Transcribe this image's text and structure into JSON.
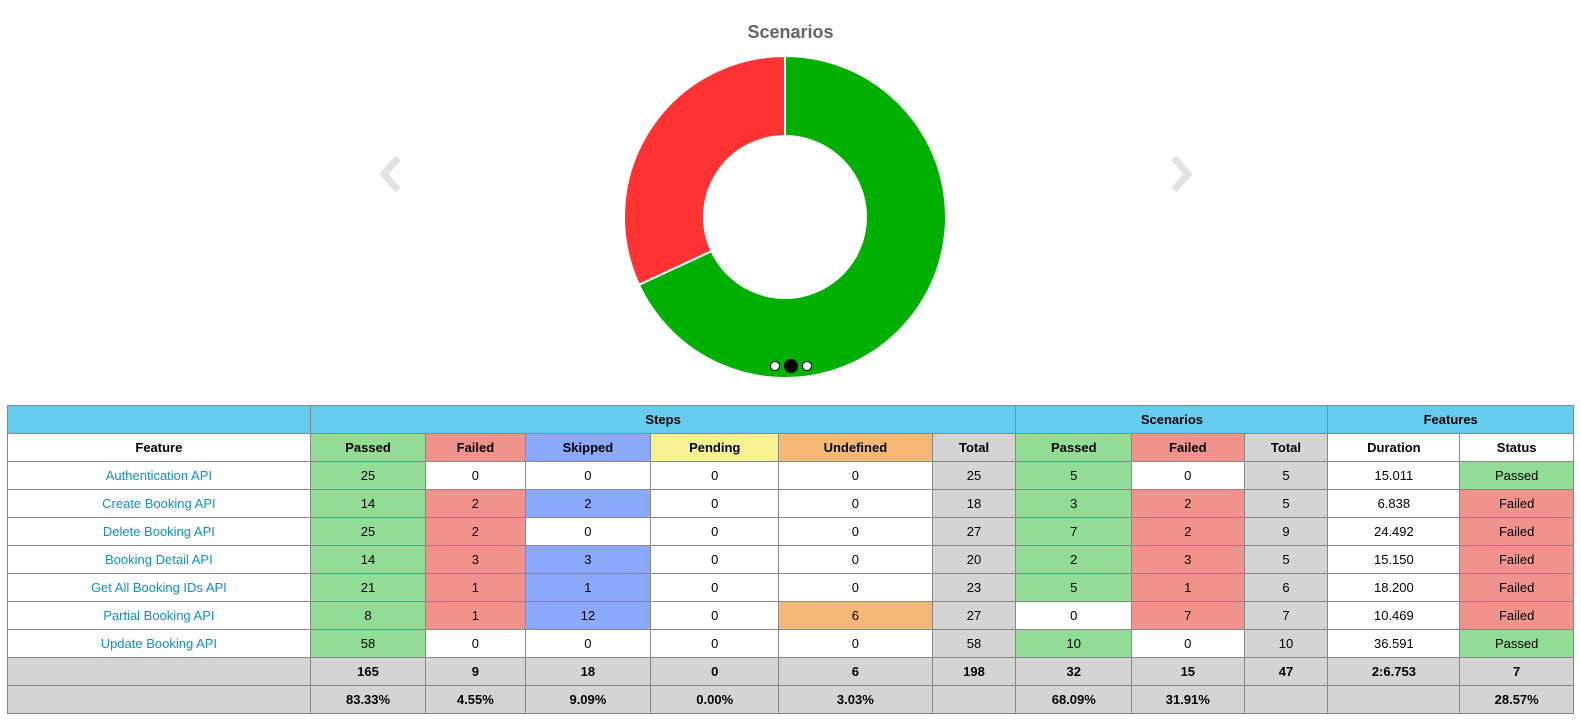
{
  "chart": {
    "title": "Scenarios",
    "slides": 3,
    "active_slide": 1,
    "colors": {
      "passed": "#00b000",
      "failed": "#ff3333"
    }
  },
  "chart_data": {
    "type": "pie",
    "title": "Scenarios",
    "categories": [
      "Passed",
      "Failed"
    ],
    "values": [
      32,
      15
    ],
    "colors": [
      "#00b000",
      "#ff3333"
    ]
  },
  "icons": {
    "prev": "chevron-left-icon",
    "next": "chevron-right-icon"
  },
  "table": {
    "groups": {
      "steps": "Steps",
      "scenarios": "Scenarios",
      "features": "Features"
    },
    "columns": {
      "feature": "Feature",
      "steps_passed": "Passed",
      "steps_failed": "Failed",
      "steps_skipped": "Skipped",
      "steps_pending": "Pending",
      "steps_undefined": "Undefined",
      "steps_total": "Total",
      "scen_passed": "Passed",
      "scen_failed": "Failed",
      "scen_total": "Total",
      "duration": "Duration",
      "status": "Status"
    },
    "rows": [
      {
        "feature": "Authentication API",
        "steps_passed": "25",
        "steps_failed": "0",
        "steps_skipped": "0",
        "steps_pending": "0",
        "steps_undefined": "0",
        "steps_total": "25",
        "scen_passed": "5",
        "scen_failed": "0",
        "scen_total": "5",
        "duration": "15.011",
        "status": "Passed"
      },
      {
        "feature": "Create Booking API",
        "steps_passed": "14",
        "steps_failed": "2",
        "steps_skipped": "2",
        "steps_pending": "0",
        "steps_undefined": "0",
        "steps_total": "18",
        "scen_passed": "3",
        "scen_failed": "2",
        "scen_total": "5",
        "duration": "6.838",
        "status": "Failed"
      },
      {
        "feature": "Delete Booking API",
        "steps_passed": "25",
        "steps_failed": "2",
        "steps_skipped": "0",
        "steps_pending": "0",
        "steps_undefined": "0",
        "steps_total": "27",
        "scen_passed": "7",
        "scen_failed": "2",
        "scen_total": "9",
        "duration": "24.492",
        "status": "Failed"
      },
      {
        "feature": "Booking Detail API",
        "steps_passed": "14",
        "steps_failed": "3",
        "steps_skipped": "3",
        "steps_pending": "0",
        "steps_undefined": "0",
        "steps_total": "20",
        "scen_passed": "2",
        "scen_failed": "3",
        "scen_total": "5",
        "duration": "15.150",
        "status": "Failed"
      },
      {
        "feature": "Get All Booking IDs API",
        "steps_passed": "21",
        "steps_failed": "1",
        "steps_skipped": "1",
        "steps_pending": "0",
        "steps_undefined": "0",
        "steps_total": "23",
        "scen_passed": "5",
        "scen_failed": "1",
        "scen_total": "6",
        "duration": "18.200",
        "status": "Failed"
      },
      {
        "feature": "Partial Booking API",
        "steps_passed": "8",
        "steps_failed": "1",
        "steps_skipped": "12",
        "steps_pending": "0",
        "steps_undefined": "6",
        "steps_total": "27",
        "scen_passed": "0",
        "scen_failed": "7",
        "scen_total": "7",
        "duration": "10.469",
        "status": "Failed"
      },
      {
        "feature": "Update Booking API",
        "steps_passed": "58",
        "steps_failed": "0",
        "steps_skipped": "0",
        "steps_pending": "0",
        "steps_undefined": "0",
        "steps_total": "58",
        "scen_passed": "10",
        "scen_failed": "0",
        "scen_total": "10",
        "duration": "36.591",
        "status": "Passed"
      }
    ],
    "totals": {
      "feature": "",
      "steps_passed": "165",
      "steps_failed": "9",
      "steps_skipped": "18",
      "steps_pending": "0",
      "steps_undefined": "6",
      "steps_total": "198",
      "scen_passed": "32",
      "scen_failed": "15",
      "scen_total": "47",
      "duration": "2:6.753",
      "status": "7"
    },
    "percentages": {
      "feature": "",
      "steps_passed": "83.33%",
      "steps_failed": "4.55%",
      "steps_skipped": "9.09%",
      "steps_pending": "0.00%",
      "steps_undefined": "3.03%",
      "steps_total": "",
      "scen_passed": "68.09%",
      "scen_failed": "31.91%",
      "scen_total": "",
      "duration": "",
      "status": "28.57%"
    }
  }
}
